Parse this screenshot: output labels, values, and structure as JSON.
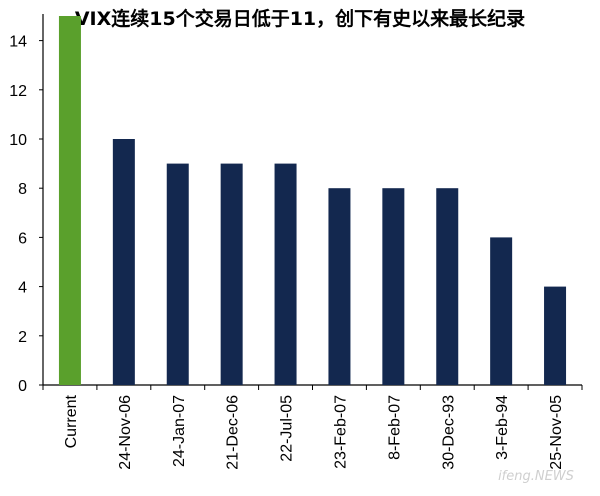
{
  "chart_data": {
    "type": "bar",
    "title": "VIX连续15个交易日低于11，创下有史以来最长纪录",
    "xlabel": "",
    "ylabel": "",
    "ylim": [
      0,
      15
    ],
    "yticks": [
      0,
      2,
      4,
      6,
      8,
      10,
      12,
      14
    ],
    "categories": [
      "Current",
      "24-Nov-06",
      "24-Jan-07",
      "21-Dec-06",
      "22-Jul-05",
      "23-Feb-07",
      "8-Feb-07",
      "30-Dec-93",
      "3-Feb-94",
      "25-Nov-05"
    ],
    "values": [
      15,
      10,
      9,
      9,
      9,
      8,
      8,
      8,
      6,
      4
    ],
    "colors": [
      "#5aa02c",
      "#13284f",
      "#13284f",
      "#13284f",
      "#13284f",
      "#13284f",
      "#13284f",
      "#13284f",
      "#13284f",
      "#13284f"
    ],
    "grid": false,
    "legend": "none"
  },
  "watermark": "ifeng.NEWS"
}
